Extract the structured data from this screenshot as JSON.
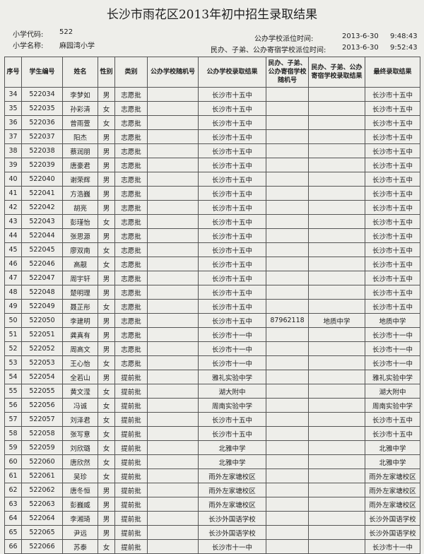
{
  "header": {
    "title": "长沙市雨花区2013年初中招生录取结果",
    "school_code_label": "小学代码:",
    "school_code": "522",
    "school_name_label": "小学名称:",
    "school_name": "麻园湾小学",
    "public_time_label": "公办学校派位时间:",
    "public_date": "2013-6-30",
    "public_time": "9:48:43",
    "private_time_label": "民办、子弟、公办寄宿学校派位时间:",
    "private_date": "2013-6-30",
    "private_time": "9:52:43"
  },
  "table": {
    "columns": [
      "序号",
      "学生编号",
      "姓名",
      "性别",
      "类别",
      "公办学校随机号",
      "公办学校录取结果",
      "民办、子弟、公办寄宿学校随机号",
      "民办、子弟、公办寄宿学校录取结果",
      "最终录取结果"
    ],
    "rows": [
      [
        "34",
        "522034",
        "李梦如",
        "男",
        "志愿批",
        null,
        "长沙市十五中",
        null,
        null,
        "长沙市十五中"
      ],
      [
        "35",
        "522035",
        "孙彩清",
        "女",
        "志愿批",
        null,
        "长沙市十五中",
        null,
        null,
        "长沙市十五中"
      ],
      [
        "36",
        "522036",
        "曾雨萱",
        "女",
        "志愿批",
        null,
        "长沙市十五中",
        null,
        null,
        "长沙市十五中"
      ],
      [
        "37",
        "522037",
        "阳杰",
        "男",
        "志愿批",
        null,
        "长沙市十五中",
        null,
        null,
        "长沙市十五中"
      ],
      [
        "38",
        "522038",
        "蔡润朋",
        "男",
        "志愿批",
        null,
        "长沙市十五中",
        null,
        null,
        "长沙市十五中"
      ],
      [
        "39",
        "522039",
        "唐豪君",
        "男",
        "志愿批",
        null,
        "长沙市十五中",
        null,
        null,
        "长沙市十五中"
      ],
      [
        "40",
        "522040",
        "谢荣辉",
        "男",
        "志愿批",
        null,
        "长沙市十五中",
        null,
        null,
        "长沙市十五中"
      ],
      [
        "41",
        "522041",
        "方浩巍",
        "男",
        "志愿批",
        null,
        "长沙市十五中",
        null,
        null,
        "长沙市十五中"
      ],
      [
        "42",
        "522042",
        "胡亮",
        "男",
        "志愿批",
        null,
        "长沙市十五中",
        null,
        null,
        "长沙市十五中"
      ],
      [
        "43",
        "522043",
        "彭瑾怡",
        "女",
        "志愿批",
        null,
        "长沙市十五中",
        null,
        null,
        "长沙市十五中"
      ],
      [
        "44",
        "522044",
        "张思源",
        "男",
        "志愿批",
        null,
        "长沙市十五中",
        null,
        null,
        "长沙市十五中"
      ],
      [
        "45",
        "522045",
        "廖双南",
        "女",
        "志愿批",
        null,
        "长沙市十五中",
        null,
        null,
        "长沙市十五中"
      ],
      [
        "46",
        "522046",
        "高靓",
        "女",
        "志愿批",
        null,
        "长沙市十五中",
        null,
        null,
        "长沙市十五中"
      ],
      [
        "47",
        "522047",
        "周宇轩",
        "男",
        "志愿批",
        null,
        "长沙市十五中",
        null,
        null,
        "长沙市十五中"
      ],
      [
        "48",
        "522048",
        "楚明理",
        "男",
        "志愿批",
        null,
        "长沙市十五中",
        null,
        null,
        "长沙市十五中"
      ],
      [
        "49",
        "522049",
        "聂芷彤",
        "女",
        "志愿批",
        null,
        "长沙市十五中",
        null,
        null,
        "长沙市十五中"
      ],
      [
        "50",
        "522050",
        "李建明",
        "男",
        "志愿批",
        null,
        "长沙市十五中",
        "87962118",
        "地质中学",
        "地质中学"
      ],
      [
        "51",
        "522051",
        "龚真有",
        "男",
        "志愿批",
        null,
        "长沙市十一中",
        null,
        null,
        "长沙市十一中"
      ],
      [
        "52",
        "522052",
        "周高文",
        "男",
        "志愿批",
        null,
        "长沙市十一中",
        null,
        null,
        "长沙市十一中"
      ],
      [
        "53",
        "522053",
        "王心怡",
        "女",
        "志愿批",
        null,
        "长沙市十一中",
        null,
        null,
        "长沙市十一中"
      ],
      [
        "54",
        "522054",
        "全若山",
        "男",
        "提前批",
        null,
        "雅礼实验中学",
        null,
        null,
        "雅礼实验中学"
      ],
      [
        "55",
        "522055",
        "黄文滢",
        "女",
        "提前批",
        null,
        "湖大附中",
        null,
        null,
        "湖大附中"
      ],
      [
        "56",
        "522056",
        "冯诚",
        "女",
        "提前批",
        null,
        "周南实验中学",
        null,
        null,
        "周南实验中学"
      ],
      [
        "57",
        "522057",
        "刘泽君",
        "女",
        "提前批",
        null,
        "长沙市十五中",
        null,
        null,
        "长沙市十五中"
      ],
      [
        "58",
        "522058",
        "张写意",
        "女",
        "提前批",
        null,
        "长沙市十五中",
        null,
        null,
        "长沙市十五中"
      ],
      [
        "59",
        "522059",
        "刘欣璐",
        "女",
        "提前批",
        null,
        "北雅中学",
        null,
        null,
        "北雅中学"
      ],
      [
        "60",
        "522060",
        "唐欣然",
        "女",
        "提前批",
        null,
        "北雅中学",
        null,
        null,
        "北雅中学"
      ],
      [
        "61",
        "522061",
        "吴珍",
        "女",
        "提前批",
        null,
        "雨外左家塘校区",
        null,
        null,
        "雨外左家塘校区"
      ],
      [
        "62",
        "522062",
        "唐冬恒",
        "男",
        "提前批",
        null,
        "雨外左家塘校区",
        null,
        null,
        "雨外左家塘校区"
      ],
      [
        "63",
        "522063",
        "彭巍威",
        "男",
        "提前批",
        null,
        "雨外左家塘校区",
        null,
        null,
        "雨外左家塘校区"
      ],
      [
        "64",
        "522064",
        "李湘琦",
        "男",
        "提前批",
        null,
        "长沙外国语学校",
        null,
        null,
        "长沙外国语学校"
      ],
      [
        "65",
        "522065",
        "尹远",
        "男",
        "提前批",
        null,
        "长沙外国语学校",
        null,
        null,
        "长沙外国语学校"
      ],
      [
        "66",
        "522066",
        "苏泰",
        "女",
        "提前批",
        null,
        "长沙市十一中",
        null,
        null,
        "长沙市十一中"
      ]
    ]
  }
}
